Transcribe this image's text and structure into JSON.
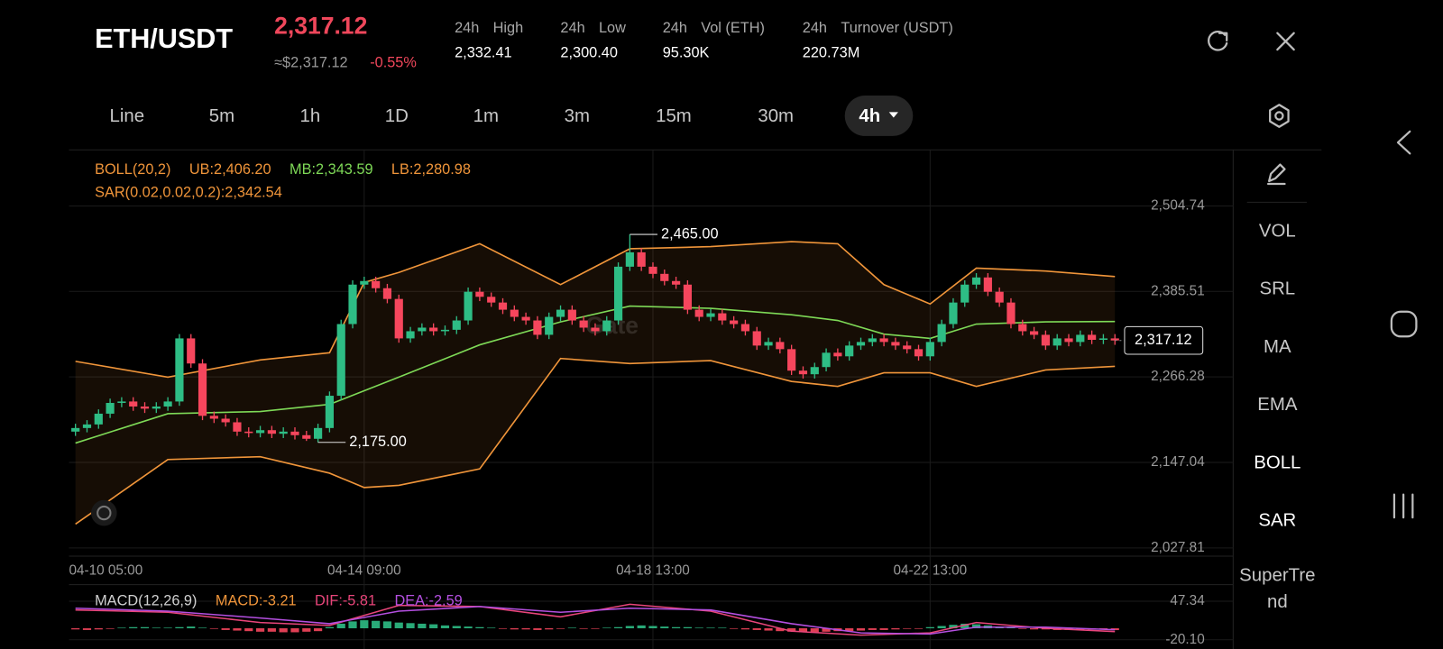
{
  "header": {
    "pair": "ETH/USDT",
    "price": "2,317.12",
    "approx": "≈$2,317.12",
    "change": "-0.55%",
    "stats": [
      {
        "period": "24h",
        "name": "High",
        "value": "2,332.41"
      },
      {
        "period": "24h",
        "name": "Low",
        "value": "2,300.40"
      },
      {
        "period": "24h",
        "name": "Vol (ETH)",
        "value": "95.30K"
      },
      {
        "period": "24h",
        "name": "Turnover (USDT)",
        "value": "220.73M"
      }
    ]
  },
  "timeframes": [
    {
      "label": "Line",
      "active": false
    },
    {
      "label": "5m",
      "active": false
    },
    {
      "label": "1h",
      "active": false
    },
    {
      "label": "1D",
      "active": false
    },
    {
      "label": "1m",
      "active": false
    },
    {
      "label": "3m",
      "active": false
    },
    {
      "label": "15m",
      "active": false
    },
    {
      "label": "30m",
      "active": false
    },
    {
      "label": "4h",
      "active": true
    }
  ],
  "indicators": [
    {
      "label": "VOL",
      "active": false
    },
    {
      "label": "SRL",
      "active": false
    },
    {
      "label": "MA",
      "active": false
    },
    {
      "label": "EMA",
      "active": false
    },
    {
      "label": "BOLL",
      "active": true
    },
    {
      "label": "SAR",
      "active": true
    },
    {
      "label": "SuperTrend",
      "active": false
    }
  ],
  "chart_data": [
    {
      "type": "candlestick",
      "categories": [
        "04-10 05:00",
        null,
        null,
        null,
        null,
        null,
        null,
        null,
        null,
        null,
        null,
        null,
        null,
        null,
        null,
        null,
        null,
        null,
        null,
        null,
        null,
        null,
        null,
        null,
        null,
        "04-14 09:00",
        null,
        null,
        null,
        null,
        null,
        null,
        null,
        null,
        null,
        null,
        null,
        null,
        null,
        null,
        null,
        null,
        null,
        null,
        null,
        null,
        null,
        null,
        null,
        null,
        "04-18 13:00",
        null,
        null,
        null,
        null,
        null,
        null,
        null,
        null,
        null,
        null,
        null,
        null,
        null,
        null,
        null,
        null,
        null,
        null,
        null,
        null,
        null,
        null,
        null,
        "04-22 13:00",
        null,
        null,
        null,
        null,
        null,
        null,
        null,
        null,
        null,
        null,
        null,
        null,
        null,
        null,
        null,
        null
      ],
      "open": [
        2190,
        2195,
        2200,
        2215,
        2230,
        2232,
        2225,
        2222,
        2225,
        2232,
        2320,
        2285,
        2212,
        2208,
        2203,
        2190,
        2188,
        2192,
        2187,
        2190,
        2185,
        2180,
        2195,
        2240,
        2340,
        2395,
        2400,
        2390,
        2375,
        2320,
        2330,
        2335,
        2330,
        2332,
        2345,
        2385,
        2378,
        2370,
        2360,
        2350,
        2345,
        2325,
        2350,
        2360,
        2345,
        2335,
        2330,
        2345,
        2420,
        2440,
        2420,
        2410,
        2400,
        2395,
        2360,
        2350,
        2355,
        2345,
        2340,
        2330,
        2310,
        2315,
        2305,
        2275,
        2270,
        2280,
        2300,
        2295,
        2310,
        2315,
        2320,
        2315,
        2310,
        2305,
        2295,
        2315,
        2340,
        2370,
        2395,
        2405,
        2385,
        2370,
        2340,
        2330,
        2325,
        2310,
        2320,
        2315,
        2325,
        2318,
        2320
      ],
      "high": [
        2201,
        2206,
        2221,
        2236,
        2238,
        2238,
        2231,
        2231,
        2238,
        2326,
        2326,
        2291,
        2218,
        2214,
        2209,
        2196,
        2198,
        2198,
        2196,
        2196,
        2191,
        2201,
        2246,
        2346,
        2401,
        2406,
        2406,
        2396,
        2381,
        2336,
        2341,
        2341,
        2338,
        2351,
        2391,
        2391,
        2384,
        2376,
        2366,
        2356,
        2351,
        2356,
        2366,
        2366,
        2351,
        2341,
        2351,
        2426,
        2465,
        2446,
        2426,
        2416,
        2406,
        2401,
        2366,
        2361,
        2361,
        2351,
        2346,
        2336,
        2321,
        2321,
        2311,
        2281,
        2286,
        2306,
        2306,
        2316,
        2321,
        2326,
        2326,
        2321,
        2316,
        2311,
        2321,
        2346,
        2376,
        2401,
        2411,
        2411,
        2391,
        2376,
        2346,
        2336,
        2331,
        2326,
        2326,
        2331,
        2331,
        2326,
        2326
      ],
      "low": [
        2184,
        2189,
        2194,
        2209,
        2224,
        2219,
        2216,
        2216,
        2219,
        2226,
        2279,
        2206,
        2202,
        2197,
        2184,
        2182,
        2182,
        2181,
        2181,
        2179,
        2177,
        2175,
        2189,
        2234,
        2334,
        2389,
        2384,
        2369,
        2314,
        2314,
        2324,
        2324,
        2324,
        2326,
        2339,
        2372,
        2364,
        2354,
        2344,
        2339,
        2319,
        2319,
        2344,
        2339,
        2329,
        2324,
        2324,
        2339,
        2414,
        2414,
        2404,
        2394,
        2389,
        2354,
        2344,
        2344,
        2339,
        2334,
        2324,
        2304,
        2304,
        2299,
        2269,
        2264,
        2264,
        2274,
        2289,
        2289,
        2304,
        2309,
        2309,
        2304,
        2299,
        2289,
        2289,
        2309,
        2334,
        2364,
        2389,
        2379,
        2364,
        2334,
        2324,
        2319,
        2304,
        2304,
        2309,
        2309,
        2312,
        2312,
        2311
      ],
      "close": [
        2195,
        2200,
        2215,
        2230,
        2232,
        2225,
        2222,
        2225,
        2232,
        2320,
        2285,
        2212,
        2208,
        2203,
        2190,
        2188,
        2192,
        2187,
        2190,
        2185,
        2180,
        2195,
        2240,
        2340,
        2395,
        2400,
        2390,
        2375,
        2320,
        2330,
        2335,
        2330,
        2332,
        2345,
        2385,
        2378,
        2370,
        2360,
        2350,
        2345,
        2325,
        2350,
        2360,
        2345,
        2335,
        2330,
        2345,
        2420,
        2440,
        2420,
        2410,
        2400,
        2395,
        2360,
        2350,
        2355,
        2345,
        2340,
        2330,
        2310,
        2315,
        2305,
        2275,
        2270,
        2280,
        2300,
        2295,
        2310,
        2315,
        2320,
        2315,
        2310,
        2305,
        2295,
        2315,
        2340,
        2370,
        2395,
        2405,
        2385,
        2370,
        2340,
        2330,
        2325,
        2310,
        2320,
        2315,
        2325,
        2318,
        2320,
        2317.12
      ],
      "up_color": "#2ebd85",
      "down_color": "#f6465d",
      "ylim": [
        2016.3,
        2580.4
      ],
      "yticks": [
        {
          "value": 2504.74,
          "label": "2,504.74"
        },
        {
          "value": 2385.51,
          "label": "2,385.51"
        },
        {
          "value": 2266.28,
          "label": "2,266.28"
        },
        {
          "value": 2147.04,
          "label": "2,147.04"
        },
        {
          "value": 2027.81,
          "label": "2,027.81"
        }
      ],
      "grid": true,
      "bands": {
        "title": "BOLL(20,2)",
        "title_color": "#f0953a",
        "fill": "rgba(240,149,58,0.09)",
        "x": [
          0,
          8,
          16,
          22,
          25,
          28,
          35,
          42,
          48,
          55,
          62,
          66,
          70,
          74,
          78,
          84,
          90
        ],
        "lines": [
          {
            "label": "UB:2,406.20",
            "color": "#f0953a",
            "values": [
              2288,
              2266,
              2290,
              2300,
              2398,
              2412,
              2452,
              2395,
              2445,
              2448,
              2455,
              2452,
              2395,
              2368,
              2418,
              2414,
              2406.2
            ]
          },
          {
            "label": "MB:2,343.59",
            "color": "#7ed957",
            "values": [
              2174,
              2215,
              2218,
              2228,
              2247,
              2266,
              2311,
              2343,
              2365,
              2362,
              2353,
              2345,
              2326,
              2320,
              2340,
              2343,
              2343.59
            ]
          },
          {
            "label": "LB:2,280.98",
            "color": "#f0953a",
            "values": [
              2061,
              2151,
              2155,
              2132,
              2112,
              2115,
              2138,
              2292,
              2285,
              2289,
              2260,
              2253,
              2272,
              2272,
              2253,
              2276,
              2280.98
            ]
          }
        ]
      },
      "sar_label": "SAR(0.02,0.02,0.2):2,342.54",
      "annotations": [
        {
          "index": 48,
          "value": 2465,
          "label": "2,465.00"
        },
        {
          "index": 21,
          "value": 2175,
          "label": "2,175.00"
        }
      ],
      "last_price": {
        "value": 2317.12,
        "label": "2,317.12"
      },
      "watermark": "Gate"
    },
    {
      "type": "macd",
      "title": "MACD(12,26,9)",
      "hist_label": "MACD:-3.21",
      "hist_label_color": "#f0953a",
      "hist": [
        -2,
        -3,
        -2,
        -1,
        1,
        2,
        2,
        1,
        1,
        2,
        3,
        1,
        -1,
        -3,
        -4,
        -5,
        -6,
        -6,
        -7,
        -7,
        -6,
        -5,
        2,
        8,
        12,
        14,
        13,
        12,
        10,
        9,
        8,
        7,
        5,
        4,
        3,
        2,
        1,
        -1,
        -2,
        -2,
        -3,
        -2,
        -1,
        1,
        -1,
        -1,
        1,
        2,
        4,
        5,
        4,
        3,
        2,
        2,
        1,
        1,
        1,
        -1,
        -2,
        -3,
        -4,
        -5,
        -6,
        -7,
        -7,
        -6,
        -5,
        -5,
        -4,
        -3,
        -3,
        -2,
        -1,
        -1,
        2,
        4,
        6,
        8,
        7,
        5,
        3,
        1,
        -1,
        -2,
        -2,
        -3,
        -3,
        -3,
        -2,
        -2,
        -3.21
      ],
      "up_color": "#2ebd85",
      "down_color": "#f6465d",
      "x": [
        0,
        8,
        16,
        22,
        28,
        35,
        42,
        48,
        55,
        62,
        68,
        74,
        78,
        84,
        90
      ],
      "lines": [
        {
          "label": "DIF:-5.81",
          "color": "#e8457a",
          "values": [
            32,
            28,
            10,
            5,
            40,
            38,
            20,
            42,
            30,
            -5,
            -12,
            -8,
            10,
            0,
            -5.81
          ]
        },
        {
          "label": "DEA:-2.59",
          "color": "#b44fe0",
          "values": [
            35,
            30,
            18,
            8,
            30,
            38,
            28,
            35,
            32,
            8,
            -8,
            -10,
            2,
            2,
            -2.59
          ]
        }
      ],
      "ylim": [
        -34.6,
        69.8
      ],
      "yticks": [
        47.34,
        {
          "value": -20.1,
          "label": "-20.10"
        }
      ]
    }
  ]
}
